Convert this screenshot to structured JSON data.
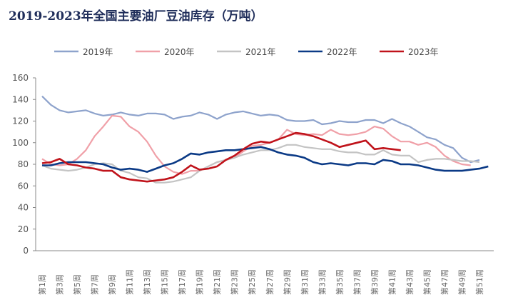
{
  "chart_data": {
    "type": "line",
    "title": "2019-2023年全国主要油厂豆油库存（万吨）",
    "xlabel": "",
    "ylabel": "",
    "ylim": [
      0,
      160
    ],
    "yticks": [
      0,
      20,
      40,
      60,
      80,
      100,
      120,
      140,
      160
    ],
    "xtick_labels": [
      "第1周",
      "第3周",
      "第5周",
      "第7周",
      "第9周",
      "第11周",
      "第13周",
      "第15周",
      "第17周",
      "第19周",
      "第21周",
      "第23周",
      "第25周",
      "第27周",
      "第29周",
      "第31周",
      "第33周",
      "第35周",
      "第37周",
      "第39周",
      "第41周",
      "第43周",
      "第45周",
      "第47周",
      "第49周",
      "第51周"
    ],
    "grid": false,
    "legend": "top",
    "series": [
      {
        "name": "2019年",
        "color": "#8ea3cc",
        "values": [
          143,
          135,
          130,
          128,
          129,
          130,
          127,
          125,
          126,
          128,
          126,
          125,
          127,
          127,
          126,
          122,
          124,
          125,
          128,
          126,
          122,
          126,
          128,
          129,
          127,
          125,
          126,
          125,
          121,
          120,
          120,
          121,
          117,
          118,
          120,
          119,
          119,
          121,
          121,
          118,
          122,
          118,
          115,
          110,
          105,
          103,
          98,
          95,
          86,
          82,
          84
        ]
      },
      {
        "name": "2020年",
        "color": "#f0a0a8",
        "values": [
          85,
          80,
          79,
          80,
          85,
          93,
          106,
          115,
          125,
          124,
          115,
          110,
          101,
          88,
          78,
          73,
          71,
          74,
          74,
          78,
          82,
          84,
          86,
          92,
          97,
          98,
          100,
          103,
          112,
          108,
          107,
          108,
          107,
          112,
          108,
          107,
          108,
          110,
          115,
          113,
          106,
          101,
          101,
          98,
          100,
          96,
          88,
          83,
          80,
          79
        ]
      },
      {
        "name": "2021年",
        "color": "#c4c4c4",
        "values": [
          79,
          76,
          75,
          74,
          75,
          77,
          80,
          81,
          80,
          74,
          72,
          68,
          67,
          63,
          63,
          64,
          66,
          68,
          74,
          78,
          82,
          84,
          86,
          89,
          91,
          93,
          93,
          95,
          98,
          98,
          96,
          95,
          94,
          94,
          92,
          91,
          91,
          89,
          89,
          93,
          89,
          88,
          88,
          82,
          84,
          85,
          85,
          84,
          83,
          83,
          82
        ]
      },
      {
        "name": "2022年",
        "color": "#0b3a86",
        "values": [
          79,
          79,
          81,
          82,
          82,
          82,
          81,
          80,
          77,
          75,
          76,
          75,
          73,
          76,
          79,
          81,
          85,
          90,
          89,
          91,
          92,
          93,
          93,
          94,
          95,
          96,
          94,
          91,
          89,
          88,
          86,
          82,
          80,
          81,
          80,
          79,
          81,
          81,
          80,
          84,
          83,
          80,
          80,
          79,
          77,
          75,
          74,
          74,
          74,
          75,
          76,
          78
        ]
      },
      {
        "name": "2023年",
        "color": "#c0131b",
        "values": [
          81,
          82,
          85,
          80,
          79,
          77,
          76,
          74,
          74,
          68,
          66,
          65,
          64,
          65,
          66,
          68,
          73,
          79,
          75,
          76,
          78,
          84,
          88,
          94,
          99,
          101,
          100,
          103,
          106,
          109,
          108,
          106,
          103,
          100,
          96,
          98,
          100,
          102,
          94,
          95,
          94,
          93
        ]
      }
    ]
  }
}
